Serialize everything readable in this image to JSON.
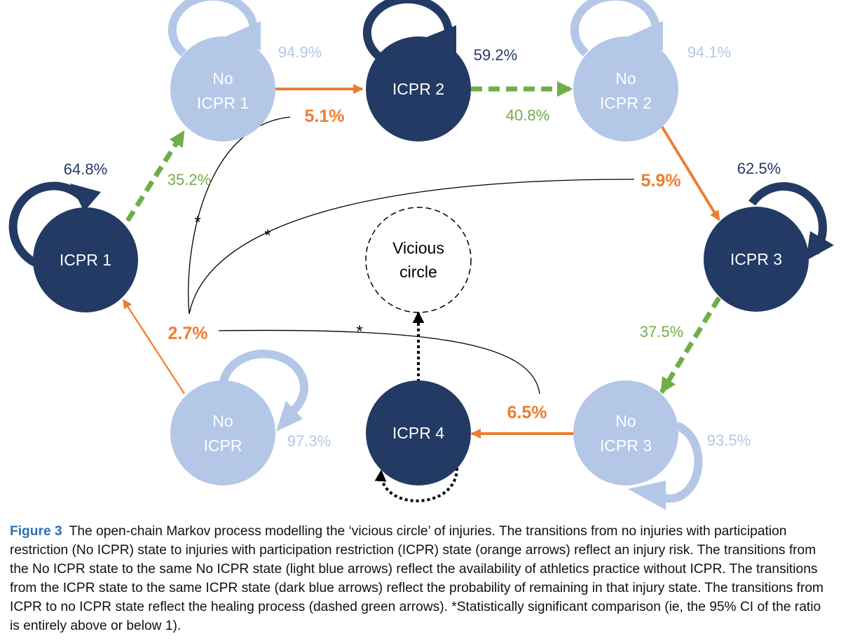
{
  "colors": {
    "dark_blue": "#233a64",
    "light_blue": "#b4c7e7",
    "orange": "#ed7d31",
    "green": "#70ad47",
    "black": "#000000",
    "caption_label": "#2a6fb5"
  },
  "nodes": {
    "icpr1": {
      "label": "ICPR 1"
    },
    "no_icpr1": {
      "line1": "No",
      "line2": "ICPR 1"
    },
    "icpr2": {
      "label": "ICPR 2"
    },
    "no_icpr2": {
      "line1": "No",
      "line2": "ICPR 2"
    },
    "icpr3": {
      "label": "ICPR 3"
    },
    "no_icpr3": {
      "line1": "No",
      "line2": "ICPR 3"
    },
    "icpr4": {
      "label": "ICPR 4"
    },
    "no_icpr": {
      "line1": "No",
      "line2": "ICPR"
    },
    "vicious": {
      "line1": "Vicious",
      "line2": "circle"
    }
  },
  "percentages": {
    "icpr1_self": "64.8%",
    "icpr1_to_no_icpr1": "35.2%",
    "no_icpr1_self": "94.9%",
    "no_icpr1_to_icpr2": "5.1%",
    "icpr2_self": "59.2%",
    "icpr2_to_no_icpr2": "40.8%",
    "no_icpr2_self": "94.1%",
    "no_icpr2_to_icpr3": "5.9%",
    "icpr3_self": "62.5%",
    "icpr3_to_no_icpr3": "37.5%",
    "no_icpr3_self": "93.5%",
    "no_icpr3_to_icpr4": "6.5%",
    "no_icpr_self": "97.3%",
    "no_icpr_to_icpr1": "2.7%"
  },
  "significance_marker": "*",
  "caption": {
    "label": "Figure 3",
    "text": "The open-chain Markov process modelling the ‘vicious circle’ of injuries. The transitions from no injuries with participation restriction (No ICPR) state to injuries with participation restriction (ICPR) state (orange arrows) reflect an injury risk. The transitions from the No ICPR state to the same No ICPR state (light blue arrows) reflect the availability of athletics practice without ICPR. The transitions from the ICPR state to the same ICPR state (dark blue arrows) reflect the probability of remaining in that injury state. The transitions from ICPR to no ICPR state reflect the healing process (dashed green arrows). *Statistically significant comparison (ie, the 95% CI of the ratio is entirely above or below 1)."
  }
}
